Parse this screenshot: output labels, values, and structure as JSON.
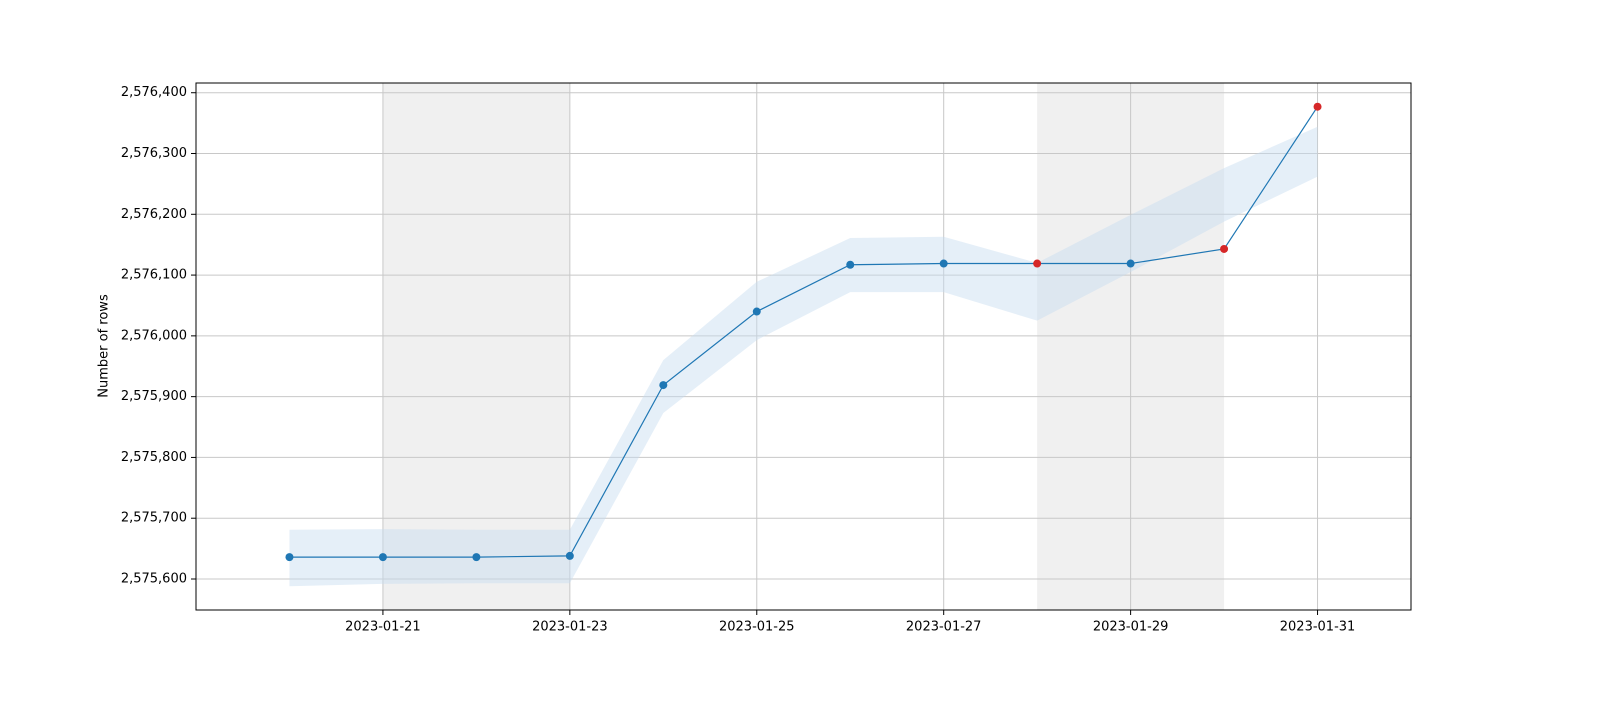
{
  "chart_data": {
    "type": "line",
    "y_label": "Number of rows",
    "x": [
      "2023-01-20",
      "2023-01-21",
      "2023-01-22",
      "2023-01-23",
      "2023-01-24",
      "2023-01-25",
      "2023-01-26",
      "2023-01-27",
      "2023-01-28",
      "2023-01-29",
      "2023-01-30",
      "2023-01-31"
    ],
    "values": [
      2575636,
      2575636,
      2575636,
      2575638,
      2575919,
      2576040,
      2576117,
      2576119,
      2576119,
      2576119,
      2576143,
      2576377
    ],
    "upper": [
      2575681,
      2575682,
      2575681,
      2575681,
      2575960,
      2576089,
      2576161,
      2576163,
      2576120,
      2576199,
      2576276,
      2576344
    ],
    "lower": [
      2575588,
      2575592,
      2575593,
      2575593,
      2575873,
      2575993,
      2576072,
      2576072,
      2576025,
      2576105,
      2576188,
      2576262
    ],
    "color": "#1f77b4",
    "band_color": "#c6dbef",
    "marker_colors": [
      "#1f77b4",
      "#1f77b4",
      "#1f77b4",
      "#1f77b4",
      "#1f77b4",
      "#1f77b4",
      "#1f77b4",
      "#1f77b4",
      "#d62728",
      "#1f77b4",
      "#d62728",
      "#d62728"
    ],
    "shaded_ranges": [
      [
        "2023-01-21",
        "2023-01-23"
      ],
      [
        "2023-01-28",
        "2023-01-30"
      ]
    ],
    "xlim": [
      "2023-01-19",
      "2023-02-01"
    ],
    "xticks": [
      "2023-01-21",
      "2023-01-23",
      "2023-01-25",
      "2023-01-27",
      "2023-01-29",
      "2023-01-31"
    ],
    "ylim": [
      2575549,
      2576416
    ],
    "yticks": [
      {
        "value": 2575600,
        "label": "2,575,600"
      },
      {
        "value": 2575700,
        "label": "2,575,700"
      },
      {
        "value": 2575800,
        "label": "2,575,800"
      },
      {
        "value": 2575900,
        "label": "2,575,900"
      },
      {
        "value": 2576000,
        "label": "2,576,000"
      },
      {
        "value": 2576100,
        "label": "2,576,100"
      },
      {
        "value": 2576200,
        "label": "2,576,200"
      },
      {
        "value": 2576300,
        "label": "2,576,300"
      },
      {
        "value": 2576400,
        "label": "2,576,400"
      }
    ],
    "grid": true
  }
}
